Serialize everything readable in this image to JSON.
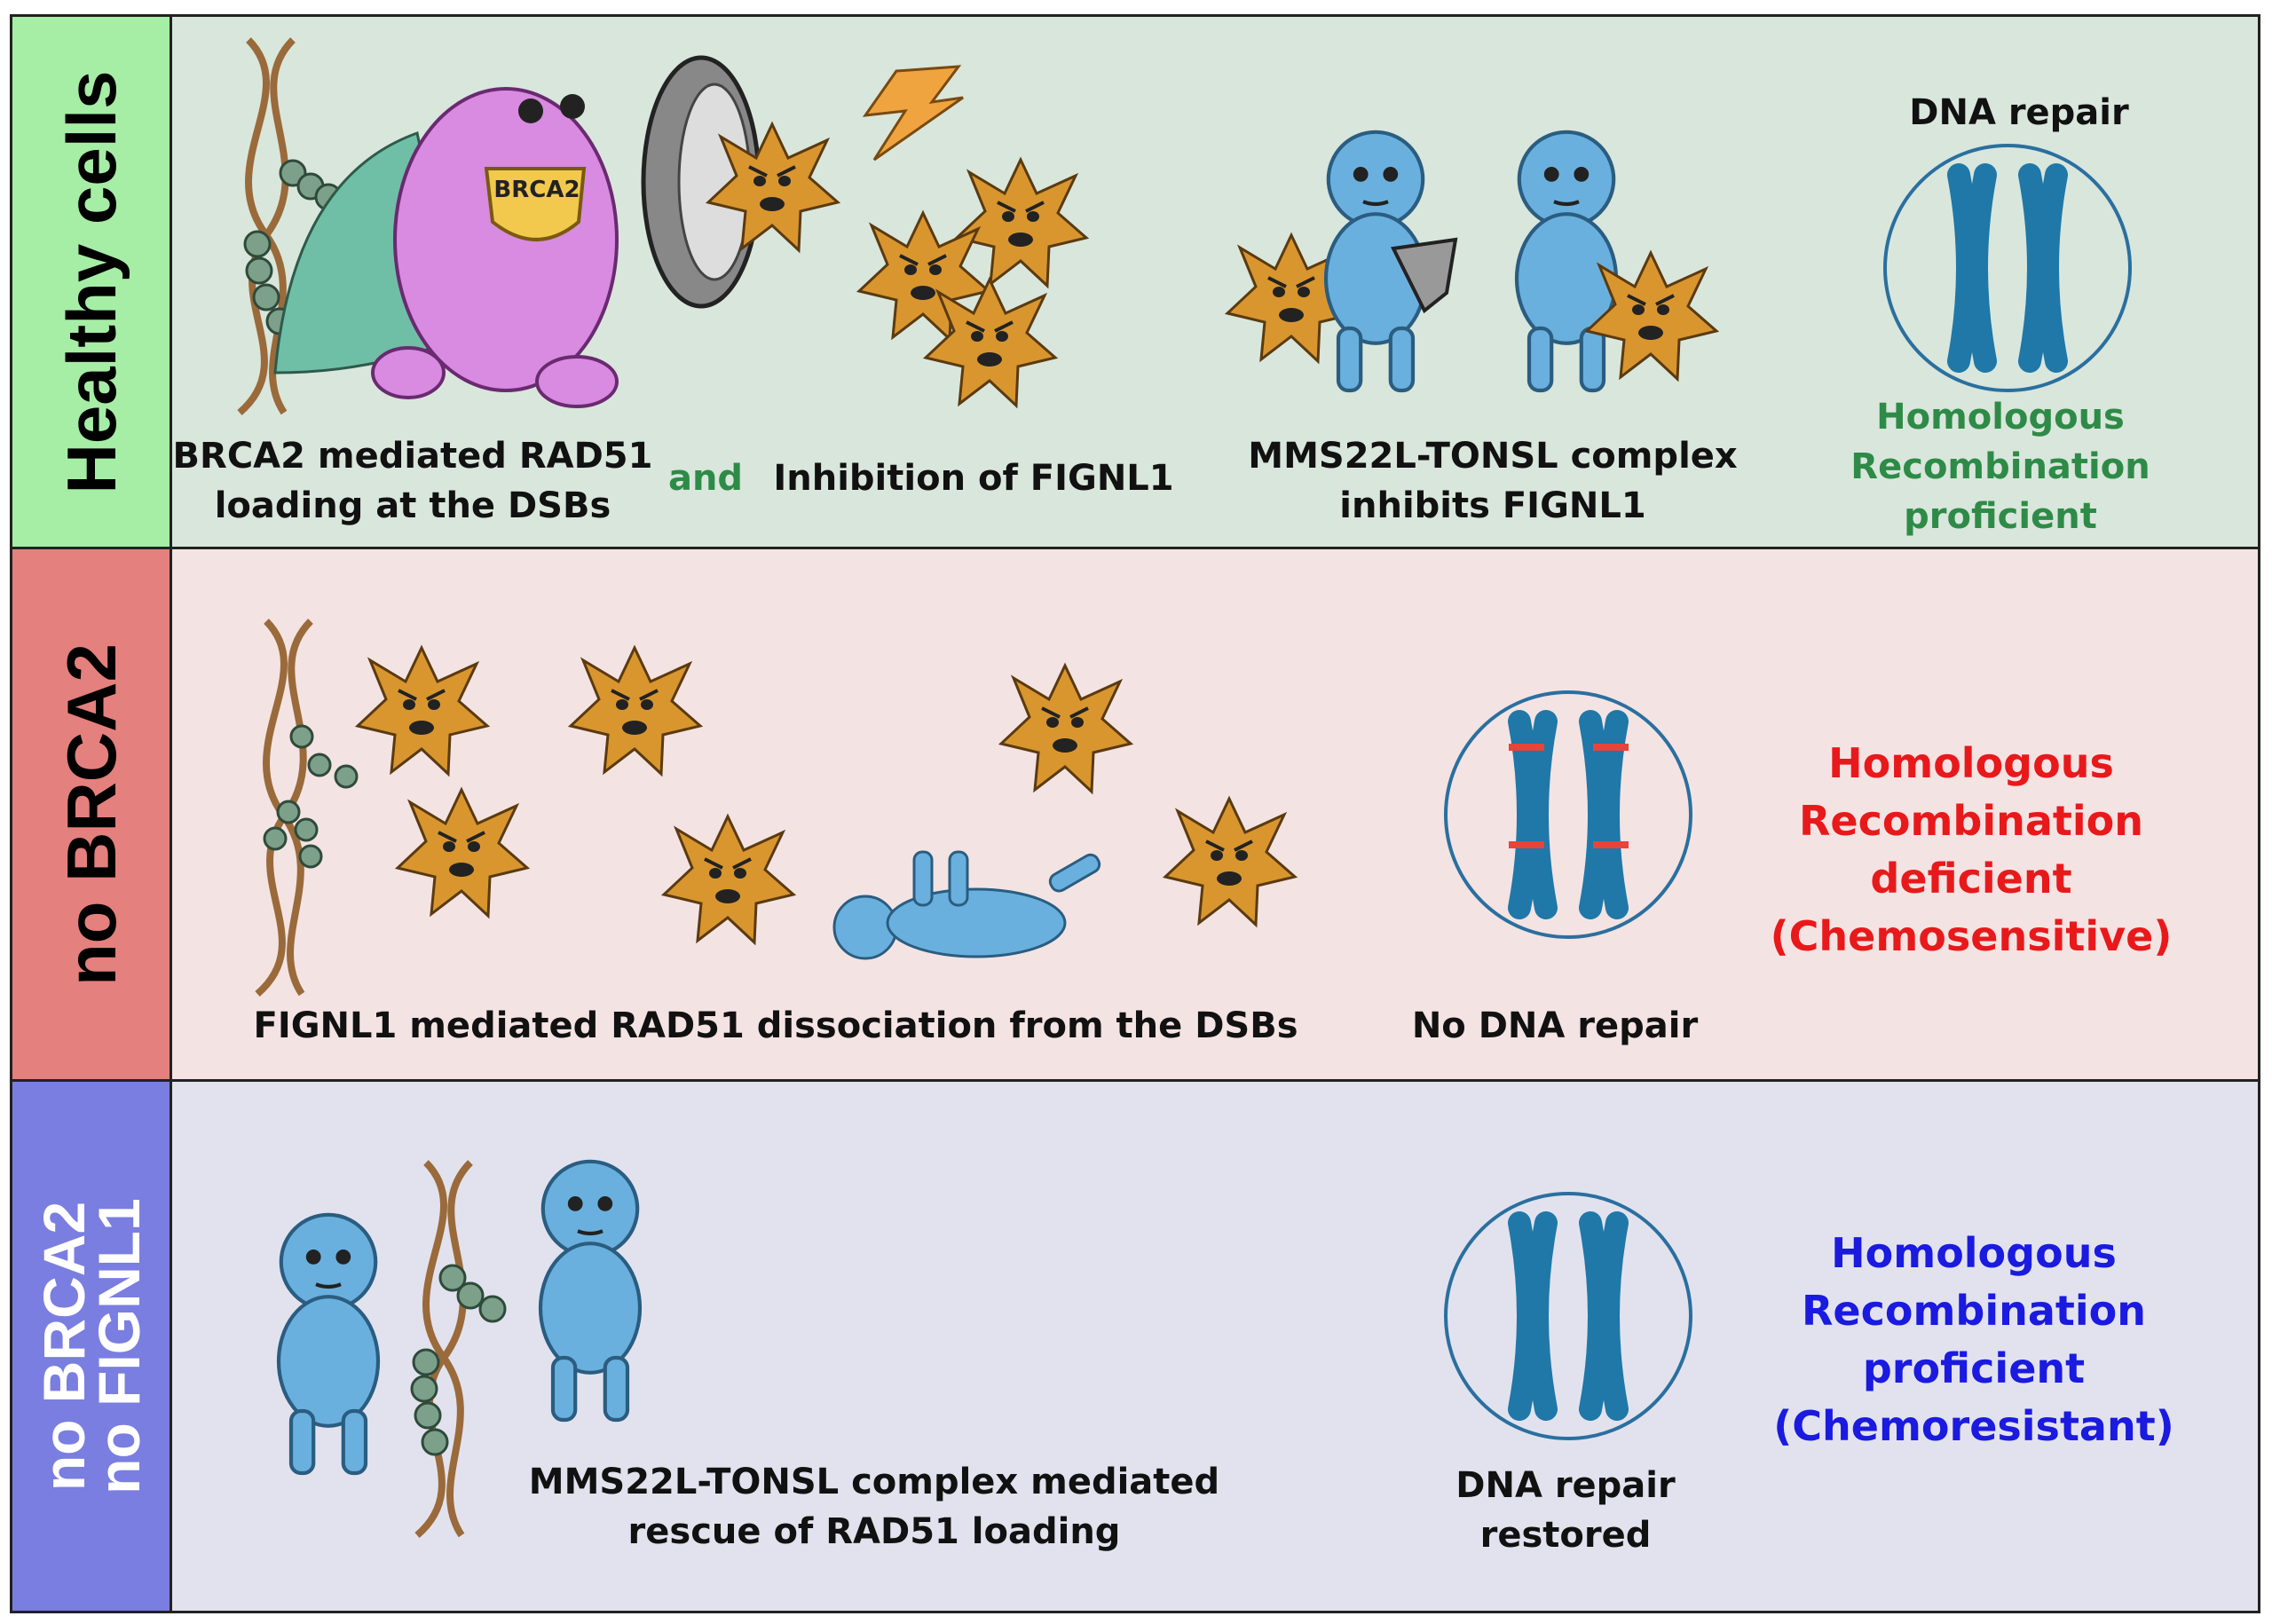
{
  "rows": [
    {
      "label": "Healthy cells",
      "bg": "#d9e6dc",
      "label_bg": "#a6eda6"
    },
    {
      "label": "no BRCA2",
      "bg": "#f4e3e3",
      "label_bg": "#e4807d"
    },
    {
      "label_lines": [
        "no BRCA2",
        "no FIGNL1"
      ],
      "bg": "#e2e2ee",
      "label_bg": "#7a7ee0"
    }
  ],
  "healthy": {
    "brca2_badge": "BRCA2",
    "step1": [
      "BRCA2 mediated RAD51",
      "loading at the DSBs"
    ],
    "and": "and",
    "step2": "Inhibition of FIGNL1",
    "step3": [
      "MMS22L-TONSL complex",
      "inhibits FIGNL1"
    ],
    "repair": "DNA repair",
    "outcome": [
      "Homologous",
      "Recombination",
      "proficient"
    ],
    "outcome_color": "#2e8b47"
  },
  "no_brca2": {
    "step": "FIGNL1 mediated RAD51 dissociation from the DSBs",
    "repair": "No DNA repair",
    "outcome": [
      "Homologous",
      "Recombination",
      "deficient",
      "(Chemosensitive)"
    ],
    "outcome_color": "#e8191b"
  },
  "no_both": {
    "step": [
      "MMS22L-TONSL complex mediated",
      "rescue of RAD51 loading"
    ],
    "repair": [
      "DNA repair",
      "restored"
    ],
    "outcome": [
      "Homologous",
      "Recombination",
      "proficient",
      "(Chemoresistant)"
    ],
    "outcome_color": "#1a1ae0"
  }
}
